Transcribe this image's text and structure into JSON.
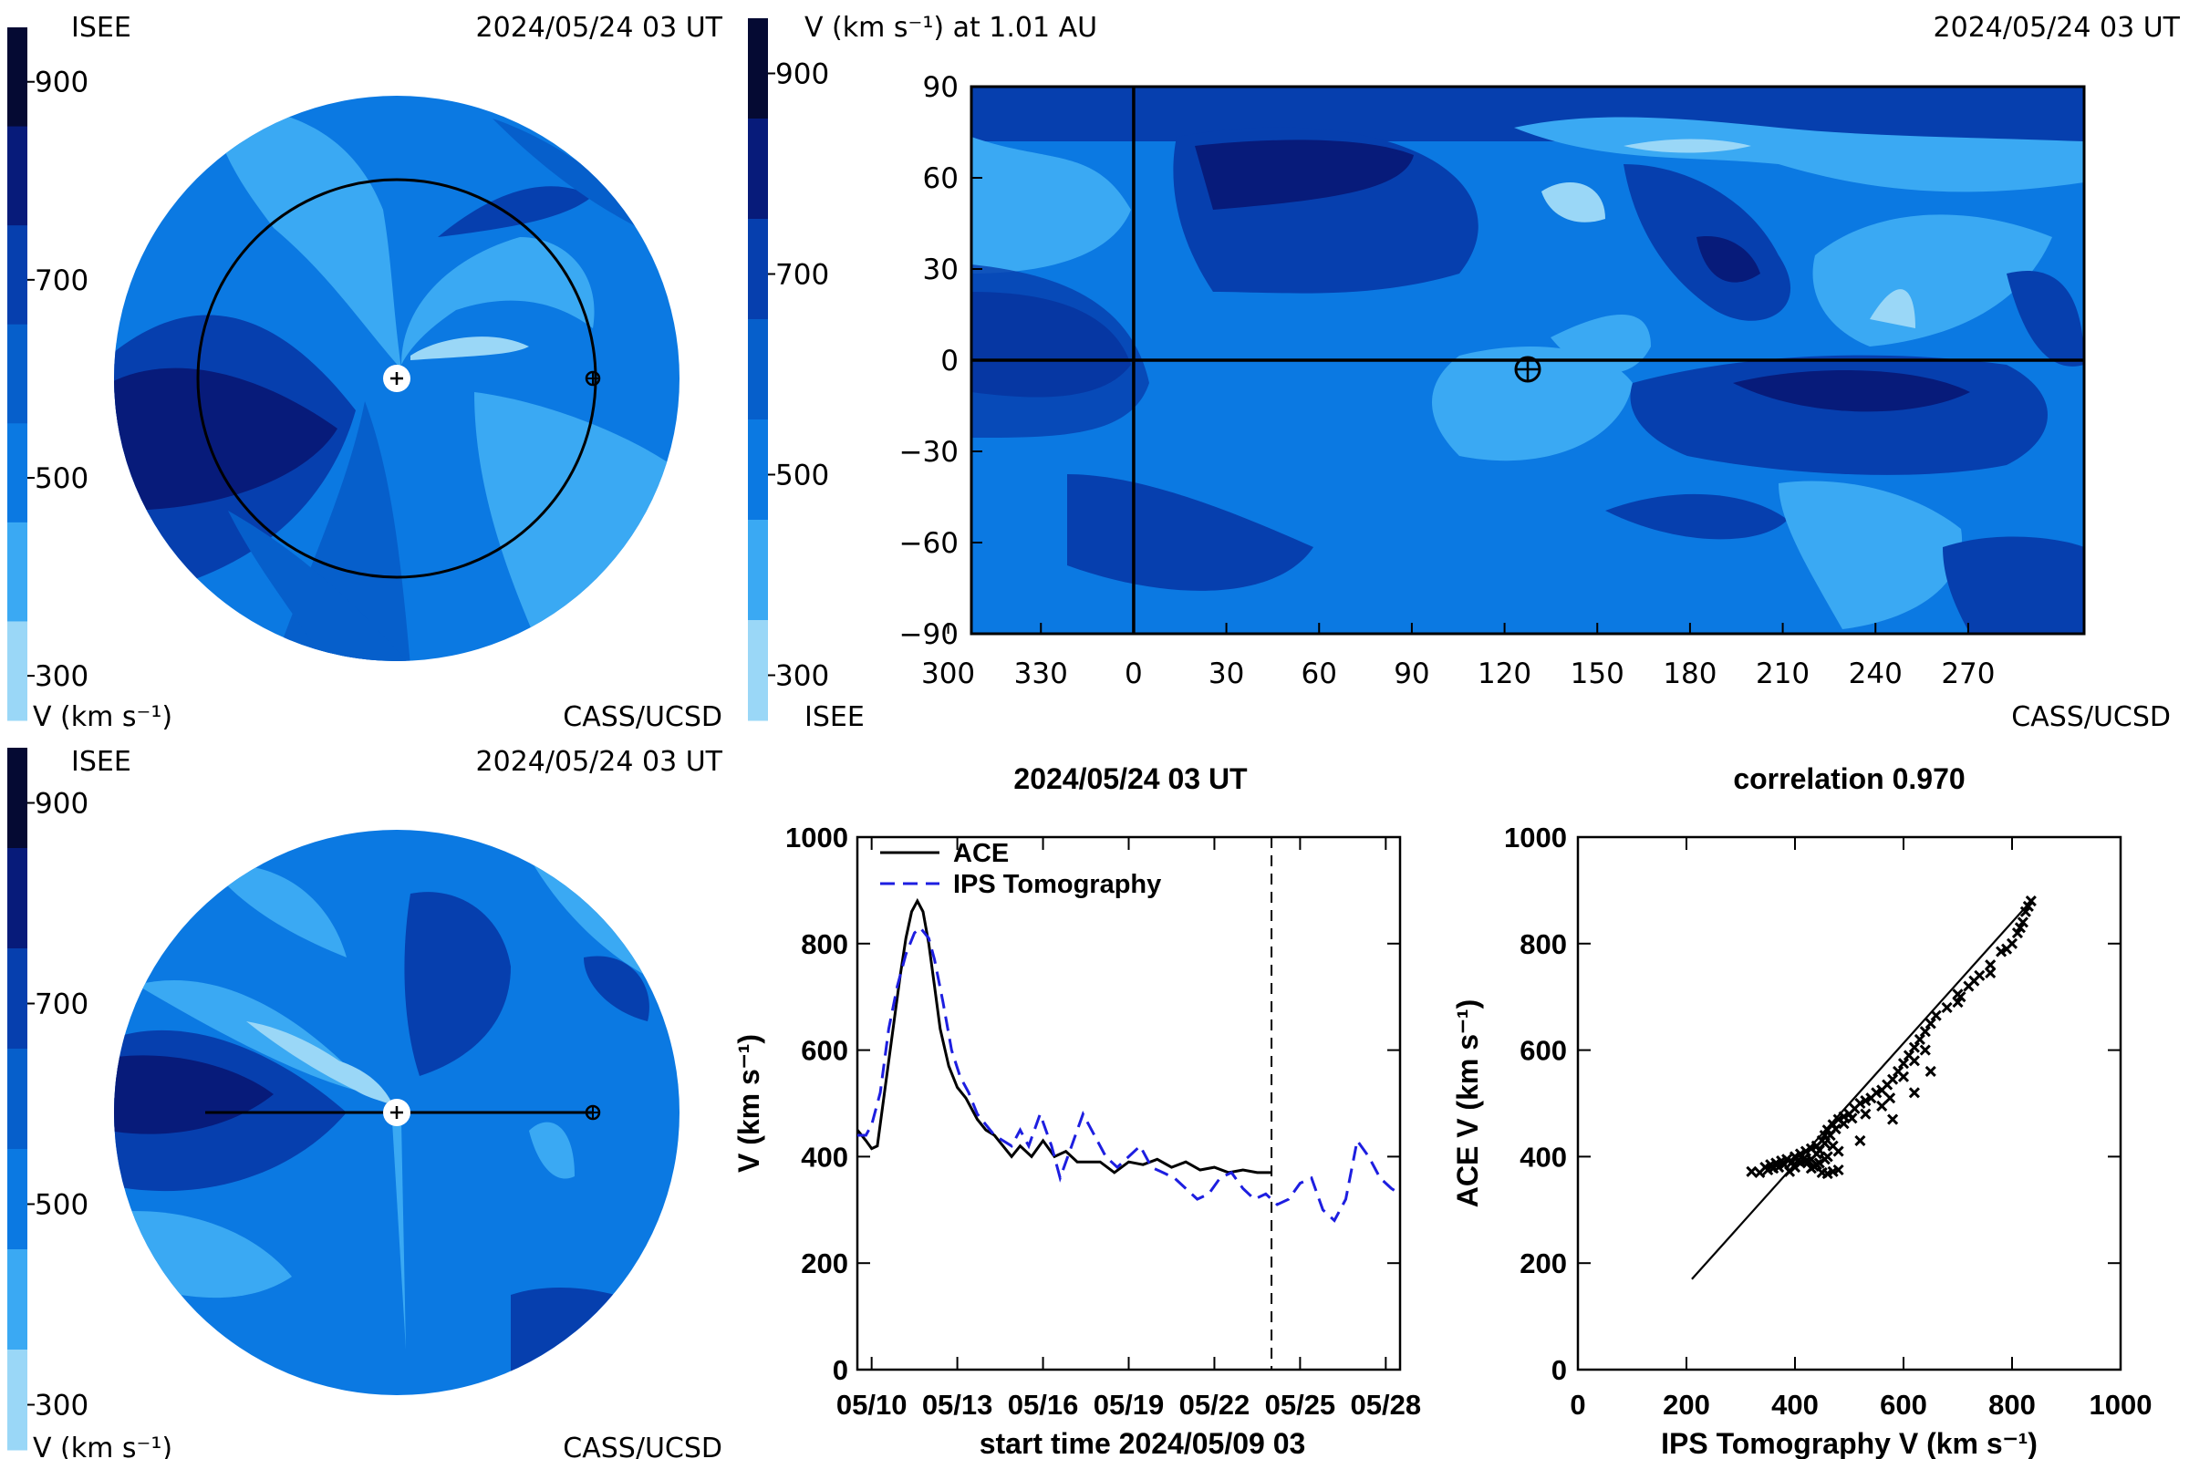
{
  "colors": {
    "levels": [
      "#9ad7f7",
      "#3aa9f3",
      "#0b79e2",
      "#065fcb",
      "#063fae",
      "#071b7a",
      "#050a33"
    ],
    "ace_line": "#000000",
    "ips_line": "#1d1ee0"
  },
  "panel_top_left": {
    "org_left": "ISEE",
    "timestamp": "2024/05/24 03 UT",
    "bar_label": "V (km s⁻¹)",
    "org_right": "CASS/UCSD",
    "bar_ticks": [
      "900",
      "700",
      "500",
      "300"
    ]
  },
  "panel_map": {
    "bar_ticks": [
      "900",
      "700",
      "500",
      "300"
    ],
    "title": "V (km s⁻¹) at 1.01 AU",
    "timestamp": "2024/05/24 03 UT",
    "org_left": "ISEE",
    "org_right": "CASS/UCSD",
    "y_ticks": [
      "90",
      "60",
      "30",
      "0",
      "−30",
      "−60",
      "−90"
    ],
    "x_ticks": [
      "330",
      "0",
      "30",
      "60",
      "90",
      "120",
      "150",
      "180",
      "210",
      "240",
      "270",
      "300"
    ]
  },
  "panel_bottom_left": {
    "org_left": "ISEE",
    "timestamp": "2024/05/24 03 UT",
    "bar_label": "V (km s⁻¹)",
    "org_right": "CASS/UCSD",
    "bar_ticks": [
      "900",
      "700",
      "500",
      "300"
    ]
  },
  "chart_data": [
    {
      "type": "line",
      "title": "2024/05/24 03 UT",
      "xlabel": "start time 2024/05/09 03",
      "ylabel": "V (km s⁻¹)",
      "ylim": [
        0,
        1000
      ],
      "xlim_days": [
        0.5,
        19.5
      ],
      "x_tick_labels": [
        "05/10",
        "05/13",
        "05/16",
        "05/19",
        "05/22",
        "05/25",
        "05/28"
      ],
      "y_tick_labels": [
        "0",
        "200",
        "400",
        "600",
        "800",
        "1000"
      ],
      "legend_position": "top-left",
      "current_time_day": 15.0,
      "series": [
        {
          "name": "ACE",
          "style": "solid",
          "x": [
            0.5,
            0.8,
            1.0,
            1.2,
            1.5,
            1.8,
            2.0,
            2.2,
            2.4,
            2.6,
            2.8,
            3.0,
            3.2,
            3.4,
            3.7,
            4.0,
            4.3,
            4.7,
            5.0,
            5.3,
            5.6,
            5.9,
            6.2,
            6.6,
            7.0,
            7.4,
            7.8,
            8.2,
            8.6,
            9.0,
            9.5,
            10.0,
            10.5,
            11.0,
            11.5,
            12.0,
            12.5,
            13.0,
            13.5,
            14.0,
            14.5,
            15.0
          ],
          "y": [
            450,
            430,
            415,
            420,
            540,
            660,
            740,
            810,
            860,
            880,
            860,
            800,
            720,
            640,
            570,
            530,
            510,
            470,
            450,
            440,
            420,
            400,
            420,
            400,
            430,
            400,
            410,
            390,
            390,
            390,
            370,
            390,
            385,
            395,
            380,
            390,
            375,
            380,
            370,
            375,
            370,
            370
          ]
        },
        {
          "name": "IPS Tomography",
          "style": "dashed",
          "x": [
            0.5,
            0.8,
            1.0,
            1.3,
            1.6,
            1.9,
            2.2,
            2.5,
            2.7,
            3.0,
            3.2,
            3.5,
            3.8,
            4.1,
            4.4,
            4.7,
            5.0,
            5.3,
            5.6,
            5.9,
            6.2,
            6.5,
            6.9,
            7.3,
            7.6,
            8.0,
            8.4,
            8.8,
            9.2,
            9.6,
            10.0,
            10.4,
            10.8,
            11.2,
            11.6,
            12.0,
            12.4,
            12.8,
            13.2,
            13.6,
            14.0,
            14.4,
            14.8,
            15.2,
            15.6,
            16.0,
            16.4,
            16.8,
            17.2,
            17.6,
            18.0,
            18.4,
            18.8,
            19.2,
            19.5
          ],
          "y": [
            440,
            440,
            460,
            520,
            640,
            720,
            780,
            820,
            830,
            810,
            770,
            690,
            600,
            550,
            520,
            480,
            460,
            440,
            430,
            420,
            450,
            420,
            480,
            420,
            360,
            420,
            480,
            440,
            400,
            380,
            400,
            420,
            380,
            370,
            360,
            340,
            320,
            330,
            360,
            370,
            340,
            320,
            330,
            310,
            320,
            350,
            360,
            300,
            280,
            320,
            430,
            400,
            360,
            340,
            330
          ]
        }
      ]
    },
    {
      "type": "scatter",
      "title": "correlation 0.970",
      "xlabel": "IPS Tomography V (km s⁻¹)",
      "ylabel": "ACE V (km s⁻¹)",
      "xlim": [
        0,
        1000
      ],
      "ylim": [
        0,
        1000
      ],
      "x_tick_labels": [
        "0",
        "200",
        "400",
        "600",
        "800",
        "1000"
      ],
      "y_tick_labels": [
        "0",
        "200",
        "400",
        "600",
        "800",
        "1000"
      ],
      "fit_line": {
        "x": [
          210,
          835
        ],
        "y": [
          170,
          880
        ]
      },
      "points": [
        [
          320,
          372
        ],
        [
          335,
          370
        ],
        [
          350,
          375
        ],
        [
          360,
          378
        ],
        [
          370,
          380
        ],
        [
          380,
          385
        ],
        [
          390,
          372
        ],
        [
          400,
          380
        ],
        [
          410,
          388
        ],
        [
          420,
          392
        ],
        [
          430,
          378
        ],
        [
          440,
          385
        ],
        [
          450,
          370
        ],
        [
          460,
          368
        ],
        [
          470,
          372
        ],
        [
          480,
          375
        ],
        [
          400,
          400
        ],
        [
          410,
          405
        ],
        [
          420,
          410
        ],
        [
          430,
          415
        ],
        [
          440,
          420
        ],
        [
          450,
          430
        ],
        [
          455,
          440
        ],
        [
          460,
          450
        ],
        [
          470,
          460
        ],
        [
          480,
          470
        ],
        [
          490,
          475
        ],
        [
          500,
          480
        ],
        [
          510,
          490
        ],
        [
          520,
          500
        ],
        [
          530,
          505
        ],
        [
          540,
          510
        ],
        [
          550,
          520
        ],
        [
          560,
          525
        ],
        [
          570,
          535
        ],
        [
          580,
          545
        ],
        [
          590,
          560
        ],
        [
          600,
          575
        ],
        [
          610,
          590
        ],
        [
          620,
          605
        ],
        [
          630,
          620
        ],
        [
          640,
          635
        ],
        [
          650,
          650
        ],
        [
          660,
          665
        ],
        [
          680,
          680
        ],
        [
          700,
          705
        ],
        [
          720,
          720
        ],
        [
          740,
          740
        ],
        [
          760,
          760
        ],
        [
          780,
          785
        ],
        [
          800,
          800
        ],
        [
          810,
          820
        ],
        [
          820,
          840
        ],
        [
          825,
          860
        ],
        [
          830,
          870
        ],
        [
          835,
          880
        ],
        [
          430,
          395
        ],
        [
          440,
          405
        ],
        [
          445,
          412
        ],
        [
          455,
          425
        ],
        [
          465,
          440
        ],
        [
          475,
          452
        ],
        [
          490,
          462
        ],
        [
          505,
          472
        ],
        [
          530,
          480
        ],
        [
          560,
          495
        ],
        [
          575,
          510
        ],
        [
          600,
          550
        ],
        [
          620,
          580
        ],
        [
          640,
          600
        ],
        [
          650,
          560
        ],
        [
          620,
          520
        ],
        [
          580,
          470
        ],
        [
          520,
          430
        ],
        [
          480,
          410
        ],
        [
          460,
          400
        ],
        [
          470,
          420
        ],
        [
          455,
          395
        ],
        [
          445,
          388
        ],
        [
          435,
          382
        ],
        [
          425,
          390
        ],
        [
          415,
          395
        ],
        [
          405,
          392
        ],
        [
          395,
          390
        ],
        [
          385,
          395
        ],
        [
          375,
          392
        ],
        [
          365,
          388
        ],
        [
          355,
          385
        ],
        [
          345,
          380
        ],
        [
          700,
          690
        ],
        [
          760,
          745
        ],
        [
          790,
          790
        ],
        [
          815,
          830
        ],
        [
          705,
          700
        ],
        [
          730,
          730
        ]
      ]
    }
  ]
}
